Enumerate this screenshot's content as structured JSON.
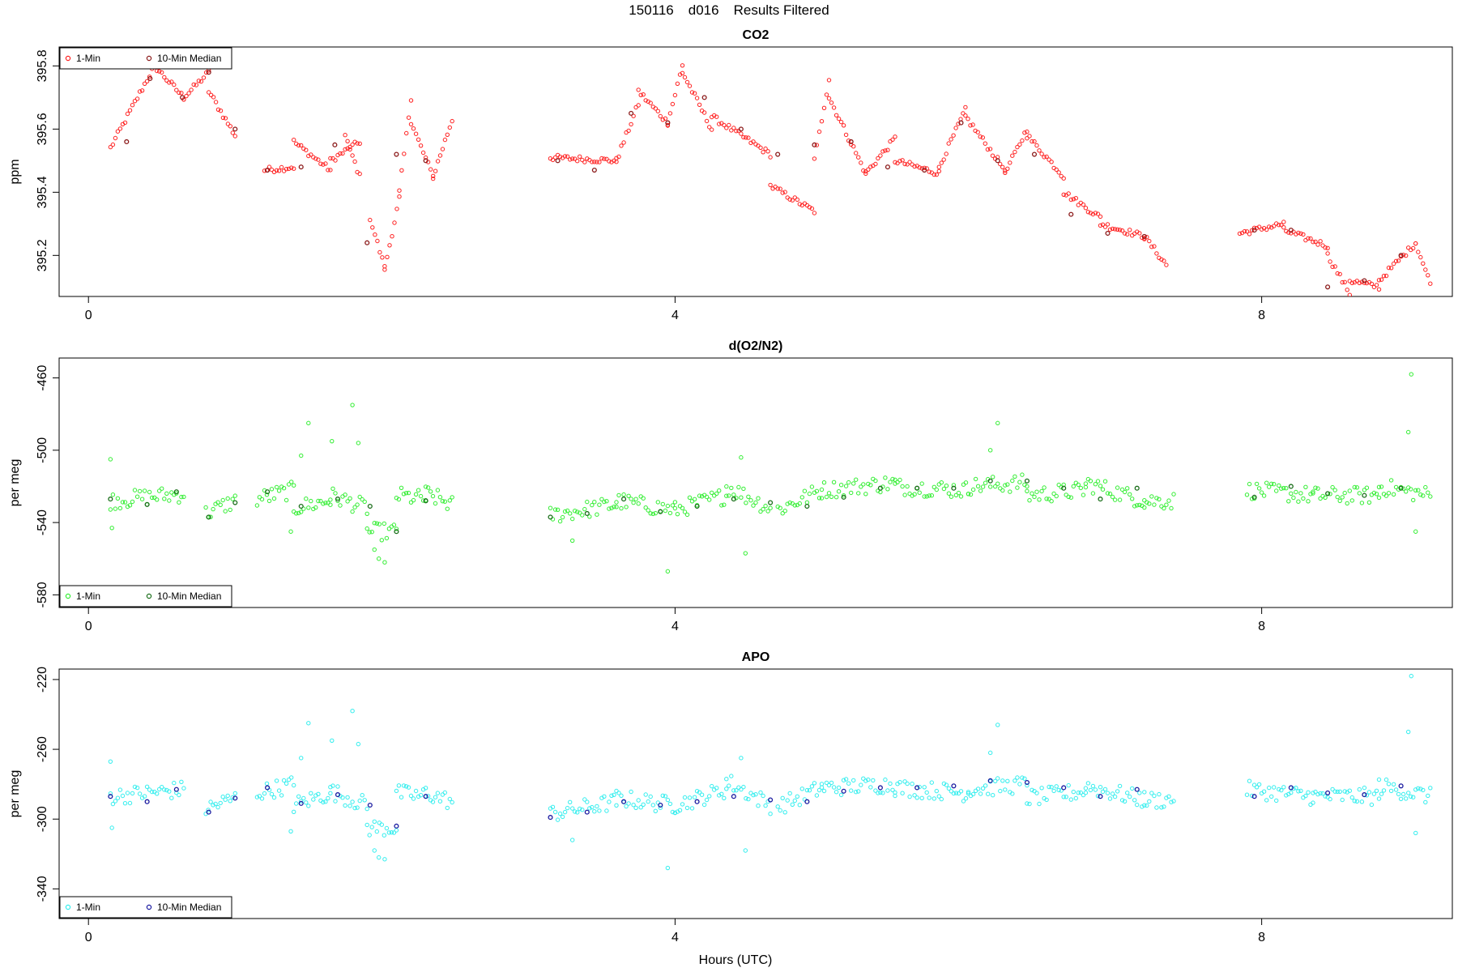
{
  "page": {
    "title_date": "150116",
    "title_flight": "d016",
    "title_text": "Results Filtered",
    "xlabel": "Hours (UTC)"
  },
  "colors": {
    "co2_one_min": "#ff2020",
    "co2_median": "#8b1a1a",
    "o2_one_min": "#33ee33",
    "o2_median": "#1a6e1a",
    "apo_one_min": "#33eeee",
    "apo_median": "#1a1aa0"
  },
  "chart_data": [
    {
      "id": "co2",
      "type": "scatter",
      "title": "CO2",
      "ylabel": "ppm",
      "xlim": [
        -0.2,
        9.3
      ],
      "ylim": [
        395.07,
        395.86
      ],
      "xticks": [
        0,
        4,
        8
      ],
      "yticks": [
        395.2,
        395.4,
        395.6,
        395.8
      ],
      "grid": false,
      "legend": {
        "position": "top-left",
        "entries": [
          "1-Min",
          "10-Min Median"
        ]
      },
      "series": [
        {
          "name": "1-Min",
          "segments": [
            {
              "x0": 0.15,
              "x1": 0.45,
              "y0": 395.54,
              "y1": 395.8
            },
            {
              "x0": 0.45,
              "x1": 0.65,
              "y0": 395.8,
              "y1": 395.7
            },
            {
              "x0": 0.65,
              "x1": 0.82,
              "y0": 395.7,
              "y1": 395.78
            },
            {
              "x0": 0.82,
              "x1": 1.0,
              "y0": 395.72,
              "y1": 395.58
            },
            {
              "x0": 1.2,
              "x1": 1.4,
              "y0": 395.47,
              "y1": 395.48
            },
            {
              "x0": 1.4,
              "x1": 1.65,
              "y0": 395.56,
              "y1": 395.47
            },
            {
              "x0": 1.65,
              "x1": 1.85,
              "y0": 395.5,
              "y1": 395.56
            },
            {
              "x0": 1.75,
              "x1": 1.85,
              "y0": 395.58,
              "y1": 395.45
            },
            {
              "x0": 1.92,
              "x1": 2.02,
              "y0": 395.32,
              "y1": 395.16
            },
            {
              "x0": 2.02,
              "x1": 2.12,
              "y0": 395.16,
              "y1": 395.38
            },
            {
              "x0": 2.12,
              "x1": 2.2,
              "y0": 395.4,
              "y1": 395.7
            },
            {
              "x0": 2.2,
              "x1": 2.35,
              "y0": 395.62,
              "y1": 395.45
            },
            {
              "x0": 2.35,
              "x1": 2.48,
              "y0": 395.45,
              "y1": 395.63
            },
            {
              "x0": 3.15,
              "x1": 3.6,
              "y0": 395.51,
              "y1": 395.5
            },
            {
              "x0": 3.6,
              "x1": 3.75,
              "y0": 395.5,
              "y1": 395.68
            },
            {
              "x0": 3.75,
              "x1": 3.95,
              "y0": 395.72,
              "y1": 395.62
            },
            {
              "x0": 3.95,
              "x1": 4.05,
              "y0": 395.62,
              "y1": 395.8
            },
            {
              "x0": 4.05,
              "x1": 4.25,
              "y0": 395.78,
              "y1": 395.6
            },
            {
              "x0": 4.25,
              "x1": 4.65,
              "y0": 395.64,
              "y1": 395.52
            },
            {
              "x0": 4.65,
              "x1": 4.95,
              "y0": 395.42,
              "y1": 395.34
            },
            {
              "x0": 4.95,
              "x1": 5.05,
              "y0": 395.5,
              "y1": 395.76
            },
            {
              "x0": 5.05,
              "x1": 5.3,
              "y0": 395.7,
              "y1": 395.46
            },
            {
              "x0": 5.3,
              "x1": 5.5,
              "y0": 395.46,
              "y1": 395.57
            },
            {
              "x0": 5.5,
              "x1": 5.8,
              "y0": 395.5,
              "y1": 395.46
            },
            {
              "x0": 5.8,
              "x1": 5.98,
              "y0": 395.48,
              "y1": 395.66
            },
            {
              "x0": 5.98,
              "x1": 6.25,
              "y0": 395.64,
              "y1": 395.47
            },
            {
              "x0": 6.25,
              "x1": 6.4,
              "y0": 395.46,
              "y1": 395.6
            },
            {
              "x0": 6.4,
              "x1": 6.65,
              "y0": 395.58,
              "y1": 395.45
            },
            {
              "x0": 6.65,
              "x1": 6.9,
              "y0": 395.4,
              "y1": 395.32
            },
            {
              "x0": 6.9,
              "x1": 7.2,
              "y0": 395.3,
              "y1": 395.26
            },
            {
              "x0": 7.2,
              "x1": 7.35,
              "y0": 395.26,
              "y1": 395.17
            },
            {
              "x0": 7.85,
              "x1": 8.15,
              "y0": 395.27,
              "y1": 395.3
            },
            {
              "x0": 8.15,
              "x1": 8.45,
              "y0": 395.28,
              "y1": 395.23
            },
            {
              "x0": 8.45,
              "x1": 8.6,
              "y0": 395.2,
              "y1": 395.08
            },
            {
              "x0": 8.6,
              "x1": 8.8,
              "y0": 395.12,
              "y1": 395.1
            },
            {
              "x0": 8.8,
              "x1": 9.05,
              "y0": 395.12,
              "y1": 395.24
            },
            {
              "x0": 9.05,
              "x1": 9.15,
              "y0": 395.24,
              "y1": 395.11
            }
          ]
        },
        {
          "name": "10-Min Median",
          "x": [
            0.26,
            0.42,
            0.64,
            0.82,
            1.0,
            1.22,
            1.45,
            1.68,
            1.9,
            2.1,
            2.3,
            3.2,
            3.45,
            3.7,
            3.95,
            4.2,
            4.45,
            4.7,
            4.95,
            5.2,
            5.45,
            5.7,
            5.95,
            6.2,
            6.45,
            6.7,
            6.95,
            7.2,
            7.95,
            8.2,
            8.45,
            8.7,
            8.95
          ],
          "y": [
            395.56,
            395.76,
            395.7,
            395.78,
            395.6,
            395.47,
            395.48,
            395.55,
            395.24,
            395.52,
            395.5,
            395.5,
            395.47,
            395.65,
            395.62,
            395.7,
            395.6,
            395.52,
            395.55,
            395.56,
            395.48,
            395.47,
            395.62,
            395.5,
            395.52,
            395.33,
            395.27,
            395.26,
            395.28,
            395.28,
            395.1,
            395.12,
            395.2
          ]
        }
      ]
    },
    {
      "id": "o2",
      "type": "scatter",
      "title": "d(O2/N2)",
      "ylabel": "per meg",
      "xlim": [
        -0.2,
        9.3
      ],
      "ylim": [
        -587,
        -449
      ],
      "xticks": [
        0,
        4,
        8
      ],
      "yticks": [
        -460,
        -500,
        -540,
        -580
      ],
      "grid": false,
      "legend": {
        "position": "bottom-left",
        "entries": [
          "1-Min",
          "10-Min Median"
        ]
      },
      "series": [
        {
          "name": "1-Min",
          "segments": [
            {
              "x0": 0.15,
              "x1": 0.65,
              "y0": -528,
              "y1": -524
            },
            {
              "x0": 0.8,
              "x1": 1.0,
              "y0": -535,
              "y1": -528
            },
            {
              "x0": 1.15,
              "x1": 1.4,
              "y0": -527,
              "y1": -522
            },
            {
              "x0": 1.4,
              "x1": 1.65,
              "y0": -532,
              "y1": -528
            },
            {
              "x0": 1.65,
              "x1": 1.9,
              "y0": -525,
              "y1": -532
            },
            {
              "x0": 1.9,
              "x1": 2.1,
              "y0": -545,
              "y1": -545
            },
            {
              "x0": 2.1,
              "x1": 2.3,
              "y0": -525,
              "y1": -527
            },
            {
              "x0": 2.3,
              "x1": 2.48,
              "y0": -524,
              "y1": -530
            },
            {
              "x0": 3.15,
              "x1": 3.6,
              "y0": -536,
              "y1": -530
            },
            {
              "x0": 3.6,
              "x1": 4.0,
              "y0": -528,
              "y1": -533
            },
            {
              "x0": 4.0,
              "x1": 4.35,
              "y0": -533,
              "y1": -525
            },
            {
              "x0": 4.35,
              "x1": 4.65,
              "y0": -520,
              "y1": -532
            },
            {
              "x0": 4.7,
              "x1": 5.0,
              "y0": -533,
              "y1": -522
            },
            {
              "x0": 5.0,
              "x1": 5.5,
              "y0": -522,
              "y1": -518
            },
            {
              "x0": 5.5,
              "x1": 6.0,
              "y0": -520,
              "y1": -522
            },
            {
              "x0": 6.0,
              "x1": 6.4,
              "y0": -520,
              "y1": -518
            },
            {
              "x0": 6.4,
              "x1": 6.8,
              "y0": -525,
              "y1": -522
            },
            {
              "x0": 6.8,
              "x1": 7.2,
              "y0": -518,
              "y1": -528
            },
            {
              "x0": 7.2,
              "x1": 7.4,
              "y0": -528,
              "y1": -528
            },
            {
              "x0": 7.9,
              "x1": 8.35,
              "y0": -522,
              "y1": -525
            },
            {
              "x0": 8.35,
              "x1": 8.8,
              "y0": -525,
              "y1": -525
            },
            {
              "x0": 8.8,
              "x1": 9.15,
              "y0": -520,
              "y1": -525
            }
          ]
        },
        {
          "name": "10-Min Median",
          "x": [
            0.15,
            0.4,
            0.6,
            0.82,
            1.0,
            1.22,
            1.45,
            1.7,
            1.92,
            2.1,
            2.3,
            3.15,
            3.4,
            3.65,
            3.9,
            4.15,
            4.4,
            4.65,
            4.9,
            5.15,
            5.4,
            5.65,
            5.9,
            6.15,
            6.4,
            6.65,
            6.9,
            7.15,
            7.95,
            8.2,
            8.45,
            8.7,
            8.95
          ],
          "y": [
            -527,
            -530,
            -523,
            -537,
            -529,
            -523,
            -531,
            -527,
            -531,
            -545,
            -528,
            -537,
            -535,
            -527,
            -534,
            -531,
            -527,
            -529,
            -531,
            -526,
            -521,
            -521,
            -521,
            -517,
            -517,
            -521,
            -527,
            -521,
            -526,
            -520,
            -524,
            -525,
            -521
          ]
        }
      ],
      "outliers": [
        {
          "x": 0.15,
          "y": -505
        },
        {
          "x": 0.16,
          "y": -543
        },
        {
          "x": 1.38,
          "y": -545
        },
        {
          "x": 1.45,
          "y": -503
        },
        {
          "x": 1.5,
          "y": -485
        },
        {
          "x": 1.66,
          "y": -495
        },
        {
          "x": 1.8,
          "y": -475
        },
        {
          "x": 1.84,
          "y": -496
        },
        {
          "x": 1.95,
          "y": -555
        },
        {
          "x": 1.98,
          "y": -560
        },
        {
          "x": 2.02,
          "y": -562
        },
        {
          "x": 3.3,
          "y": -550
        },
        {
          "x": 3.95,
          "y": -567
        },
        {
          "x": 4.45,
          "y": -504
        },
        {
          "x": 4.48,
          "y": -557
        },
        {
          "x": 6.15,
          "y": -500
        },
        {
          "x": 6.2,
          "y": -485
        },
        {
          "x": 9.0,
          "y": -490
        },
        {
          "x": 9.02,
          "y": -458
        },
        {
          "x": 9.05,
          "y": -545
        }
      ]
    },
    {
      "id": "apo",
      "type": "scatter",
      "title": "APO",
      "ylabel": "per meg",
      "xlim": [
        -0.2,
        9.3
      ],
      "ylim": [
        -357,
        -214
      ],
      "xticks": [
        0,
        4,
        8
      ],
      "yticks": [
        -220,
        -260,
        -300,
        -340
      ],
      "grid": false,
      "legend": {
        "position": "bottom-left",
        "entries": [
          "1-Min",
          "10-Min Median"
        ]
      },
      "series": [
        {
          "name": "1-Min",
          "segments": [
            {
              "x0": 0.15,
              "x1": 0.65,
              "y0": -287,
              "y1": -283
            },
            {
              "x0": 0.8,
              "x1": 1.0,
              "y0": -294,
              "y1": -288
            },
            {
              "x0": 1.15,
              "x1": 1.4,
              "y0": -285,
              "y1": -280
            },
            {
              "x0": 1.4,
              "x1": 1.65,
              "y0": -292,
              "y1": -285
            },
            {
              "x0": 1.65,
              "x1": 1.9,
              "y0": -284,
              "y1": -292
            },
            {
              "x0": 1.9,
              "x1": 2.1,
              "y0": -305,
              "y1": -305
            },
            {
              "x0": 2.1,
              "x1": 2.3,
              "y0": -285,
              "y1": -287
            },
            {
              "x0": 2.3,
              "x1": 2.48,
              "y0": -285,
              "y1": -290
            },
            {
              "x0": 3.15,
              "x1": 3.6,
              "y0": -297,
              "y1": -290
            },
            {
              "x0": 3.6,
              "x1": 4.0,
              "y0": -288,
              "y1": -292
            },
            {
              "x0": 4.0,
              "x1": 4.35,
              "y0": -292,
              "y1": -283
            },
            {
              "x0": 4.35,
              "x1": 4.65,
              "y0": -278,
              "y1": -292
            },
            {
              "x0": 4.7,
              "x1": 5.0,
              "y0": -293,
              "y1": -282
            },
            {
              "x0": 5.0,
              "x1": 5.5,
              "y0": -282,
              "y1": -280
            },
            {
              "x0": 5.5,
              "x1": 6.0,
              "y0": -282,
              "y1": -285
            },
            {
              "x0": 6.0,
              "x1": 6.4,
              "y0": -283,
              "y1": -280
            },
            {
              "x0": 6.4,
              "x1": 6.8,
              "y0": -288,
              "y1": -284
            },
            {
              "x0": 6.8,
              "x1": 7.2,
              "y0": -281,
              "y1": -289
            },
            {
              "x0": 7.2,
              "x1": 7.4,
              "y0": -289,
              "y1": -289
            },
            {
              "x0": 7.9,
              "x1": 8.35,
              "y0": -283,
              "y1": -287
            },
            {
              "x0": 8.35,
              "x1": 8.8,
              "y0": -287,
              "y1": -287
            },
            {
              "x0": 8.8,
              "x1": 9.15,
              "y0": -281,
              "y1": -287
            }
          ]
        },
        {
          "name": "10-Min Median",
          "x": [
            0.15,
            0.4,
            0.6,
            0.82,
            1.0,
            1.22,
            1.45,
            1.7,
            1.92,
            2.1,
            2.3,
            3.15,
            3.4,
            3.65,
            3.9,
            4.15,
            4.4,
            4.65,
            4.9,
            5.15,
            5.4,
            5.65,
            5.9,
            6.15,
            6.4,
            6.65,
            6.9,
            7.15,
            7.95,
            8.2,
            8.45,
            8.7,
            8.95
          ],
          "y": [
            -287,
            -290,
            -283,
            -296,
            -288,
            -282,
            -291,
            -286,
            -292,
            -304,
            -287,
            -299,
            -296,
            -290,
            -292,
            -290,
            -287,
            -289,
            -290,
            -284,
            -282,
            -282,
            -281,
            -278,
            -279,
            -282,
            -287,
            -283,
            -287,
            -282,
            -285,
            -286,
            -281
          ]
        }
      ],
      "outliers": [
        {
          "x": 0.15,
          "y": -267
        },
        {
          "x": 0.16,
          "y": -305
        },
        {
          "x": 1.38,
          "y": -307
        },
        {
          "x": 1.45,
          "y": -265
        },
        {
          "x": 1.5,
          "y": -245
        },
        {
          "x": 1.66,
          "y": -255
        },
        {
          "x": 1.8,
          "y": -238
        },
        {
          "x": 1.84,
          "y": -257
        },
        {
          "x": 1.95,
          "y": -318
        },
        {
          "x": 1.98,
          "y": -322
        },
        {
          "x": 2.02,
          "y": -323
        },
        {
          "x": 3.3,
          "y": -312
        },
        {
          "x": 3.95,
          "y": -328
        },
        {
          "x": 4.45,
          "y": -265
        },
        {
          "x": 4.48,
          "y": -318
        },
        {
          "x": 6.15,
          "y": -262
        },
        {
          "x": 6.2,
          "y": -246
        },
        {
          "x": 9.0,
          "y": -250
        },
        {
          "x": 9.02,
          "y": -218
        },
        {
          "x": 9.05,
          "y": -308
        }
      ]
    }
  ]
}
